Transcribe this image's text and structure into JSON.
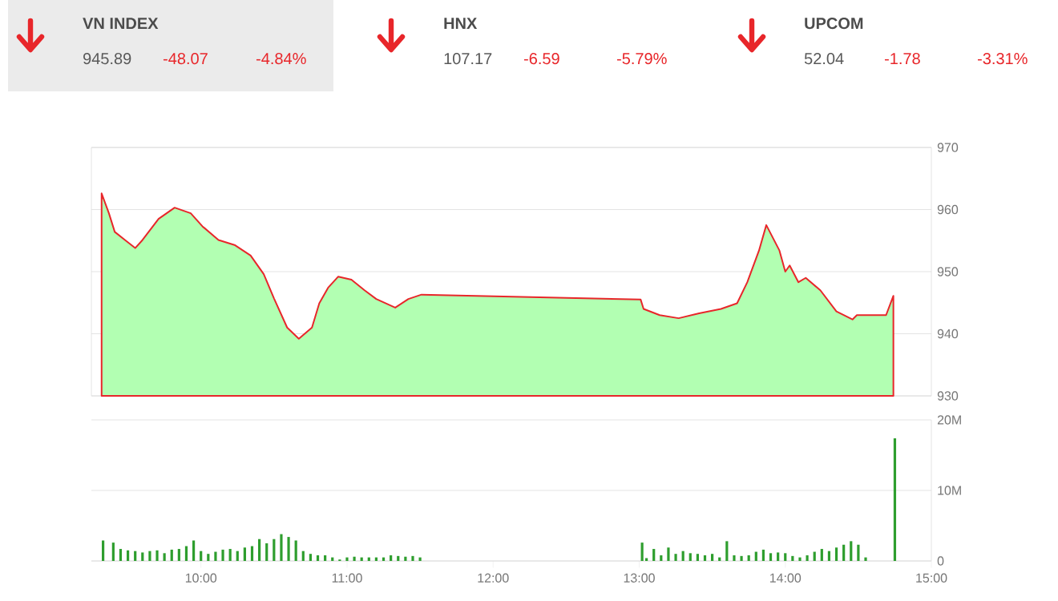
{
  "chart_data": [
    {
      "type": "other",
      "categories": [
        "VN INDEX",
        "HNX",
        "UPCOM"
      ],
      "annotations": [
        "945.89",
        "-48.07",
        "-4.84%",
        "107.17",
        "-6.59",
        "-5.79%",
        "52.04",
        "-1.78",
        "-3.31%"
      ]
    },
    {
      "type": "area",
      "xlim": [
        9.25,
        15
      ],
      "ylim": [
        930,
        970
      ],
      "yticks": [
        930,
        940,
        950,
        960,
        970
      ],
      "grid": "y",
      "tick_labels": "y",
      "series": [
        {
          "color": "#e8262a",
          "x": [
            9.32,
            9.37,
            9.41,
            9.48,
            9.55,
            9.6,
            9.71,
            9.82,
            9.93,
            10.01,
            10.12,
            10.23,
            10.34,
            10.43,
            10.5,
            10.59,
            10.67,
            10.76,
            10.81,
            10.87,
            10.94,
            11.03,
            11.12,
            11.2,
            11.33,
            11.42,
            11.51,
            13.01,
            13.03,
            13.14,
            13.27,
            13.41,
            13.56,
            13.67,
            13.74,
            13.82,
            13.87,
            13.96,
            14.0,
            14.03,
            14.09,
            14.14,
            14.24,
            14.35,
            14.46,
            14.49,
            14.69,
            14.74
          ],
          "values": [
            962.6,
            959.4,
            956.4,
            955.1,
            953.8,
            955.1,
            958.5,
            960.3,
            959.4,
            957.3,
            955.1,
            954.3,
            952.6,
            949.6,
            945.7,
            941.0,
            939.2,
            941.0,
            944.9,
            947.4,
            949.2,
            948.7,
            947.0,
            945.6,
            944.2,
            945.6,
            946.3,
            945.5,
            944.0,
            943.0,
            942.5,
            943.3,
            944.0,
            944.9,
            948.3,
            953.4,
            957.5,
            953.4,
            950.0,
            951.0,
            948.3,
            949.0,
            947.0,
            943.6,
            942.3,
            943.0,
            943.0,
            946.1
          ]
        }
      ]
    },
    {
      "type": "bar",
      "xlim": [
        9.25,
        15
      ],
      "ylim": [
        0,
        20
      ],
      "yticks": [
        0,
        {
          "value": 10,
          "label": "10M"
        },
        {
          "value": 20,
          "label": "20M"
        }
      ],
      "xticks": [
        {
          "value": 10,
          "label": "10:00"
        },
        {
          "value": 11,
          "label": "11:00"
        },
        {
          "value": 12,
          "label": "12:00"
        },
        {
          "value": 13,
          "label": "13:00"
        },
        {
          "value": 14,
          "label": "14:00"
        },
        {
          "value": 15,
          "label": "15:00"
        }
      ],
      "grid": "y",
      "series": [
        {
          "color": "#2e9e2e",
          "x": [
            9.33,
            9.4,
            9.45,
            9.5,
            9.55,
            9.6,
            9.65,
            9.7,
            9.75,
            9.8,
            9.85,
            9.9,
            9.95,
            10.0,
            10.05,
            10.1,
            10.15,
            10.2,
            10.25,
            10.3,
            10.35,
            10.4,
            10.45,
            10.5,
            10.55,
            10.6,
            10.65,
            10.7,
            10.75,
            10.8,
            10.85,
            10.9,
            10.95,
            11.0,
            11.05,
            11.1,
            11.15,
            11.2,
            11.25,
            11.3,
            11.35,
            11.4,
            11.45,
            11.5,
            13.02,
            13.05,
            13.1,
            13.15,
            13.2,
            13.25,
            13.3,
            13.35,
            13.4,
            13.45,
            13.5,
            13.55,
            13.6,
            13.65,
            13.7,
            13.75,
            13.8,
            13.85,
            13.9,
            13.95,
            14.0,
            14.05,
            14.1,
            14.15,
            14.2,
            14.25,
            14.3,
            14.35,
            14.4,
            14.45,
            14.5,
            14.55,
            14.75
          ],
          "values": [
            2.9,
            2.6,
            1.7,
            1.5,
            1.4,
            1.2,
            1.4,
            1.5,
            1.1,
            1.6,
            1.7,
            2.1,
            2.9,
            1.4,
            1.0,
            1.3,
            1.6,
            1.7,
            1.4,
            1.9,
            2.1,
            3.1,
            2.5,
            3.1,
            3.8,
            3.4,
            2.9,
            1.4,
            1.0,
            0.8,
            0.8,
            0.5,
            0.2,
            0.5,
            0.6,
            0.5,
            0.5,
            0.5,
            0.5,
            0.8,
            0.7,
            0.6,
            0.7,
            0.5,
            2.6,
            0.4,
            1.7,
            0.8,
            1.9,
            1.0,
            1.4,
            1.1,
            1.0,
            0.8,
            1.0,
            0.5,
            2.8,
            0.8,
            0.7,
            0.8,
            1.3,
            1.6,
            1.1,
            1.2,
            1.1,
            0.7,
            0.5,
            0.8,
            1.3,
            1.7,
            1.4,
            1.9,
            2.3,
            2.8,
            2.3,
            0.5,
            17.4
          ]
        }
      ]
    }
  ]
}
